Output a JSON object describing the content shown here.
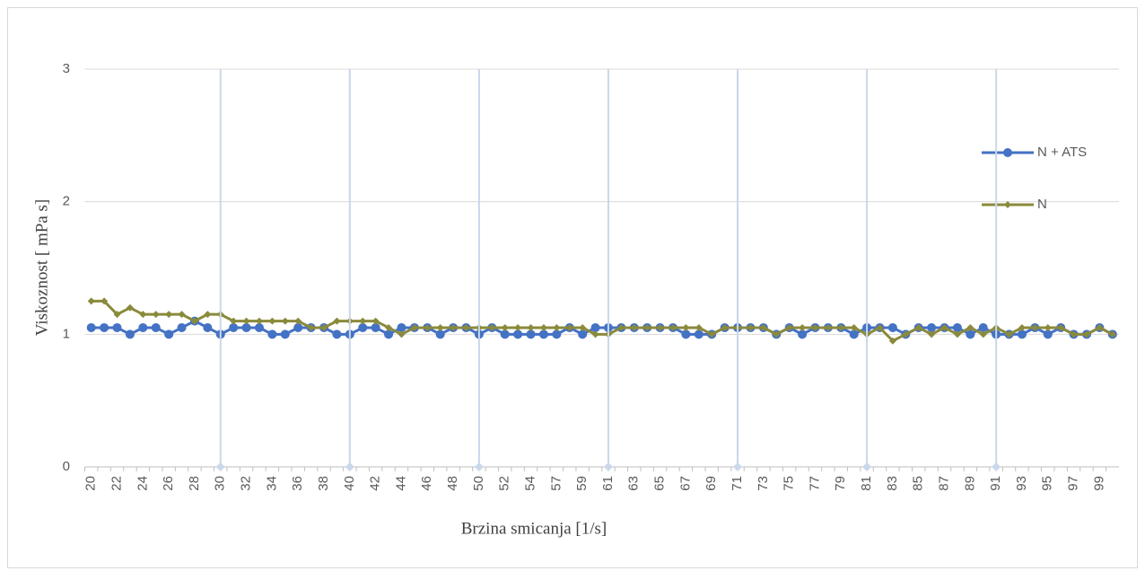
{
  "chart_data": {
    "type": "line",
    "x_label": "Brzina smicanja [1/s]",
    "y_label": "Viskoznost  [ mPa s]",
    "categories": [
      20,
      null,
      22,
      null,
      24,
      null,
      26,
      null,
      28,
      null,
      30,
      null,
      32,
      null,
      34,
      null,
      36,
      null,
      38,
      null,
      40,
      null,
      42,
      null,
      44,
      null,
      46,
      null,
      48,
      null,
      50,
      null,
      52,
      null,
      54,
      null,
      57,
      null,
      59,
      null,
      61,
      null,
      63,
      null,
      65,
      null,
      67,
      null,
      69,
      null,
      71,
      null,
      73,
      null,
      75,
      null,
      77,
      null,
      79,
      null,
      81,
      null,
      83,
      null,
      85,
      null,
      87,
      null,
      89,
      null,
      91,
      null,
      93,
      null,
      95,
      null,
      97,
      null,
      99,
      null
    ],
    "series": [
      {
        "name": "N + ATS",
        "color": "#4472c4",
        "marker": "circle",
        "values": [
          1.05,
          1.05,
          1.05,
          1.0,
          1.05,
          1.05,
          1.0,
          1.05,
          1.1,
          1.05,
          1.0,
          1.05,
          1.05,
          1.05,
          1.0,
          1.0,
          1.05,
          1.05,
          1.05,
          1.0,
          1.0,
          1.05,
          1.05,
          1.0,
          1.05,
          1.05,
          1.05,
          1.0,
          1.05,
          1.05,
          1.0,
          1.05,
          1.0,
          1.0,
          1.0,
          1.0,
          1.0,
          1.05,
          1.0,
          1.05,
          1.05,
          1.05,
          1.05,
          1.05,
          1.05,
          1.05,
          1.0,
          1.0,
          1.0,
          1.05,
          1.05,
          1.05,
          1.05,
          1.0,
          1.05,
          1.0,
          1.05,
          1.05,
          1.05,
          1.0,
          1.05,
          1.05,
          1.05,
          1.0,
          1.05,
          1.05,
          1.05,
          1.05,
          1.0,
          1.05,
          1.0,
          1.0,
          1.0,
          1.05,
          1.0,
          1.05,
          1.0,
          1.0,
          1.05,
          1.0
        ]
      },
      {
        "name": "N",
        "color": "#8a8a3c",
        "marker": "diamond",
        "values": [
          1.25,
          1.25,
          1.15,
          1.2,
          1.15,
          1.15,
          1.15,
          1.15,
          1.1,
          1.15,
          1.15,
          1.1,
          1.1,
          1.1,
          1.1,
          1.1,
          1.1,
          1.05,
          1.05,
          1.1,
          1.1,
          1.1,
          1.1,
          1.05,
          1.0,
          1.05,
          1.05,
          1.05,
          1.05,
          1.05,
          1.05,
          1.05,
          1.05,
          1.05,
          1.05,
          1.05,
          1.05,
          1.05,
          1.05,
          1.0,
          1.0,
          1.05,
          1.05,
          1.05,
          1.05,
          1.05,
          1.05,
          1.05,
          1.0,
          1.05,
          1.05,
          1.05,
          1.05,
          1.0,
          1.05,
          1.05,
          1.05,
          1.05,
          1.05,
          1.05,
          1.0,
          1.05,
          0.95,
          1.0,
          1.05,
          1.0,
          1.05,
          1.0,
          1.05,
          1.0,
          1.05,
          1.0,
          1.05,
          1.05,
          1.05,
          1.05,
          1.0,
          1.0,
          1.05,
          1.0
        ]
      },
      {
        "color": "#c9d8ea",
        "marker": "diamond",
        "drop_lines": true,
        "values": [
          null,
          null,
          null,
          null,
          null,
          null,
          null,
          null,
          null,
          null,
          0,
          null,
          null,
          null,
          null,
          null,
          null,
          null,
          null,
          null,
          0,
          null,
          null,
          null,
          null,
          null,
          null,
          null,
          null,
          null,
          0,
          null,
          null,
          null,
          null,
          null,
          null,
          null,
          null,
          null,
          0,
          null,
          null,
          null,
          null,
          null,
          null,
          null,
          null,
          null,
          0,
          null,
          null,
          null,
          null,
          null,
          null,
          null,
          null,
          null,
          0,
          null,
          null,
          null,
          null,
          null,
          null,
          null,
          null,
          null,
          0,
          null,
          null,
          null,
          null,
          null,
          null,
          null,
          null,
          null
        ]
      }
    ],
    "ylim": [
      0,
      3
    ],
    "yticks": [
      0,
      1,
      2,
      3
    ],
    "grid": true,
    "legend": "right"
  }
}
